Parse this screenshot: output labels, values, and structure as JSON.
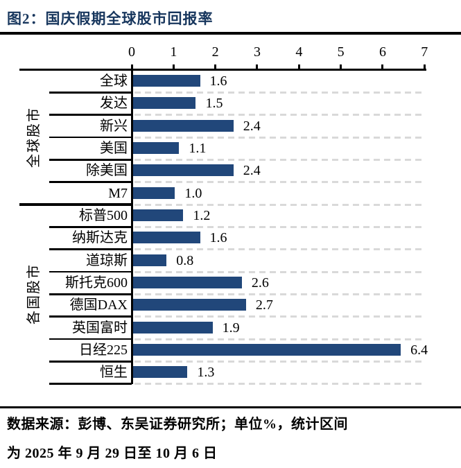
{
  "title": "图2：国庆假期全球股市回报率",
  "source_note": {
    "line1": "数据来源：彭博、东吴证券研究所；单位%，统计区间",
    "line2": "为 2025 年 9 月 29 日至 10 月 6 日"
  },
  "colors": {
    "title": "#17365D",
    "bar": "#21477A",
    "gridline": "#D9D9D9",
    "axis": "#000000"
  },
  "chart_data": {
    "type": "bar",
    "orientation": "horizontal",
    "unit": "%",
    "xlim": [
      0,
      7
    ],
    "x_ticks": [
      0,
      1,
      2,
      3,
      4,
      5,
      6,
      7
    ],
    "grid": "dashed horizontal row separators in plot area",
    "legend": "none",
    "groups": [
      {
        "label": "全球股市",
        "rows": [
          {
            "label": "全球",
            "value": 1.6
          },
          {
            "label": "发达",
            "value": 1.5
          },
          {
            "label": "新兴",
            "value": 2.4
          },
          {
            "label": "美国",
            "value": 1.1
          },
          {
            "label": "除美国",
            "value": 2.4
          },
          {
            "label": "M7",
            "value": 1.0
          }
        ]
      },
      {
        "label": "各国股市",
        "rows": [
          {
            "label": "标普500",
            "value": 1.2
          },
          {
            "label": "纳斯达克",
            "value": 1.6
          },
          {
            "label": "道琼斯",
            "value": 0.8
          },
          {
            "label": "斯托克600",
            "value": 2.6
          },
          {
            "label": "德国DAX",
            "value": 2.7
          },
          {
            "label": "英国富时",
            "value": 1.9
          },
          {
            "label": "日经225",
            "value": 6.4
          },
          {
            "label": "恒生",
            "value": 1.3
          }
        ]
      }
    ]
  }
}
